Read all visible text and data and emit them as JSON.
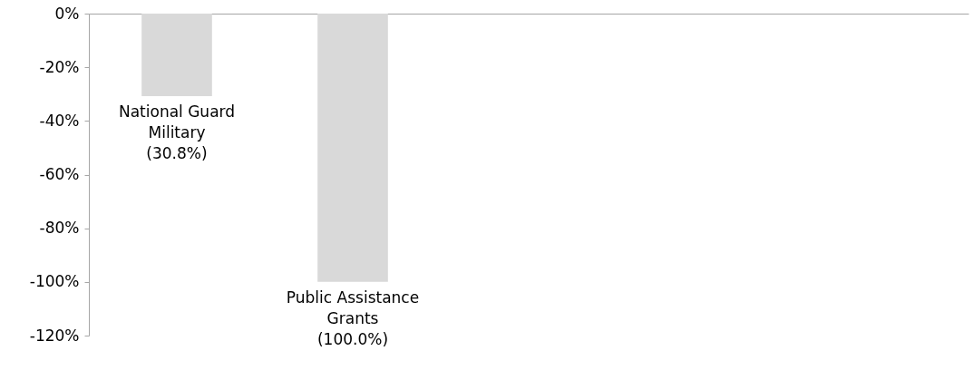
{
  "chart_data": {
    "type": "bar",
    "categories": [
      "National Guard Military",
      "Public Assistance Grants",
      null,
      null,
      null
    ],
    "values": [
      -30.8,
      -100.0,
      null,
      null,
      null
    ],
    "value_labels": [
      "(30.8%)",
      "(100.0%)",
      null,
      null,
      null
    ],
    "color": "#d9d9d9",
    "ylim": [
      -120,
      0
    ],
    "yticks": [
      {
        "value": 0,
        "label": "0%"
      },
      {
        "value": -20,
        "label": "-20%"
      },
      {
        "value": -40,
        "label": "-40%"
      },
      {
        "value": -60,
        "label": "-60%"
      },
      {
        "value": -80,
        "label": "-80%"
      },
      {
        "value": -100,
        "label": "-100%"
      },
      {
        "value": -120,
        "label": "-120%"
      }
    ],
    "grid": false
  }
}
